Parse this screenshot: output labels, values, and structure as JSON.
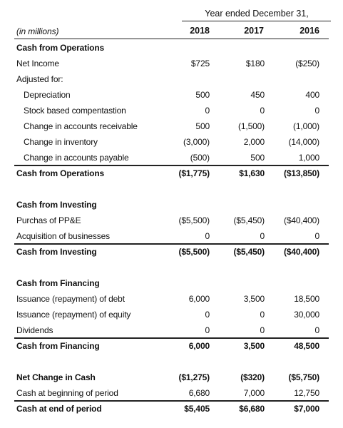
{
  "header": {
    "period": "Year ended December 31,",
    "units": "(in millions)",
    "years": [
      "2018",
      "2017",
      "2016"
    ]
  },
  "sections": [
    {
      "rows": [
        {
          "label": "Cash from Operations",
          "values": [
            "",
            "",
            ""
          ],
          "style": "bold"
        },
        {
          "label": "Net Income",
          "values": [
            "$725",
            "$180",
            "($250)"
          ]
        },
        {
          "label": "Adjusted for:",
          "values": [
            "",
            "",
            ""
          ]
        },
        {
          "label": "Depreciation",
          "values": [
            "500",
            "450",
            "400"
          ],
          "indent": true
        },
        {
          "label": "Stock based compentastion",
          "values": [
            "0",
            "0",
            "0"
          ],
          "indent": true
        },
        {
          "label": "Change in accounts receivable",
          "values": [
            "500",
            "(1,500)",
            "(1,000)"
          ],
          "indent": true
        },
        {
          "label": "Change in inventory",
          "values": [
            "(3,000)",
            "2,000",
            "(14,000)"
          ],
          "indent": true
        },
        {
          "label": "Change in accounts payable",
          "values": [
            "(500)",
            "500",
            "1,000"
          ],
          "indent": true
        },
        {
          "label": "Cash from Operations",
          "values": [
            "($1,775)",
            "$1,630",
            "($13,850)"
          ],
          "style": "bold"
        }
      ]
    },
    {
      "rows": [
        {
          "label": "Cash from Investing",
          "values": [
            "",
            "",
            ""
          ],
          "style": "bold"
        },
        {
          "label": "Purchas of PP&E",
          "values": [
            "($5,500)",
            "($5,450)",
            "($40,400)"
          ]
        },
        {
          "label": "Acquisition of businesses",
          "values": [
            "0",
            "0",
            "0"
          ]
        },
        {
          "label": "Cash from Investing",
          "values": [
            "($5,500)",
            "($5,450)",
            "($40,400)"
          ],
          "style": "bold"
        }
      ]
    },
    {
      "rows": [
        {
          "label": "Cash from Financing",
          "values": [
            "",
            "",
            ""
          ],
          "style": "bold"
        },
        {
          "label": "Issuance (repayment) of debt",
          "values": [
            "6,000",
            "3,500",
            "18,500"
          ]
        },
        {
          "label": "Issuance (repayment) of equity",
          "values": [
            "0",
            "0",
            "30,000"
          ]
        },
        {
          "label": "Dividends",
          "values": [
            "0",
            "0",
            "0"
          ]
        },
        {
          "label": "Cash from Financing",
          "values": [
            "6,000",
            "3,500",
            "48,500"
          ],
          "style": "bold"
        }
      ]
    },
    {
      "rows": [
        {
          "label": "Net Change in Cash",
          "values": [
            "($1,275)",
            "($320)",
            "($5,750)"
          ],
          "style": "bold"
        },
        {
          "label": "Cash at beginning of period",
          "values": [
            "6,680",
            "7,000",
            "12,750"
          ]
        },
        {
          "label": "Cash at end of period",
          "values": [
            "$5,405",
            "$6,680",
            "$7,000"
          ],
          "style": "bold"
        }
      ]
    }
  ]
}
